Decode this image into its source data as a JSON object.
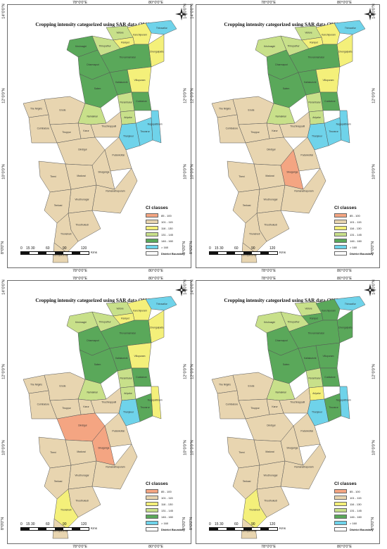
{
  "grid_labels": {
    "top_left": "78°0'0\"E",
    "top_right": "80°0'0\"E",
    "left": [
      "14°0'0\"N",
      "12°0'0\"N",
      "10°0'0\"N",
      "8°0'0\"N"
    ],
    "right": [
      "14°0'0\"N",
      "12°0'0\"N",
      "10°0'0\"N",
      "8°0'0\"N"
    ]
  },
  "legend": {
    "title": "CI classes",
    "classes": [
      {
        "label": "85 - 100",
        "color": "#f4a582"
      },
      {
        "label": "101 - 115",
        "color": "#e8d5b0"
      },
      {
        "label": "116 - 130",
        "color": "#f4f07a"
      },
      {
        "label": "131 - 145",
        "color": "#c8e08a"
      },
      {
        "label": "146 - 160",
        "color": "#5aa85a"
      },
      {
        "label": "> 160",
        "color": "#6fd3ea"
      }
    ],
    "boundary_label": "District Boundary"
  },
  "scale": {
    "ticks": [
      "0",
      "15 30",
      "60",
      "90",
      "120"
    ],
    "unit": "Kms"
  },
  "north_label": "N",
  "district_labels": [
    "Thiruvallur",
    "Vellore",
    "Kanchipuram",
    "Krishnagiri",
    "Ranipet",
    "Chengalpattu",
    "Thirupathur",
    "Tiruvannamalai",
    "Dharmapuri",
    "Kallakurichi",
    "Villupuram",
    "Salem",
    "Cuddalore",
    "The Nilgiris",
    "Erode",
    "Namakkal",
    "Perambalur",
    "Ariyalur",
    "Coimbatore",
    "Karur",
    "Tiruchirappalli",
    "Thanjavur",
    "Tiruvarur",
    "Nagapattinam",
    "Tiruppur",
    "Pudukkottai",
    "Dindigul",
    "Theni",
    "Madurai",
    "Sivaganga",
    "Virudhunagar",
    "Ramanathapuram",
    "Tenkasi",
    "Thoothukudi",
    "Tirunelveli",
    "Kanniyakumari"
  ],
  "panels": [
    {
      "title": "Cropping intensity categorized using SAR data (2019–2020)",
      "district_classes": [
        5,
        3,
        2,
        4,
        2,
        2,
        3,
        4,
        4,
        4,
        2,
        4,
        4,
        1,
        1,
        3,
        3,
        3,
        1,
        1,
        1,
        5,
        5,
        5,
        1,
        1,
        1,
        1,
        1,
        1,
        1,
        1,
        1,
        1,
        1,
        1
      ]
    },
    {
      "title": "Cropping intensity categorized using SAR data (2020–2021)",
      "district_classes": [
        5,
        3,
        2,
        3,
        2,
        2,
        3,
        4,
        4,
        4,
        2,
        4,
        4,
        1,
        1,
        3,
        3,
        3,
        1,
        1,
        1,
        5,
        5,
        5,
        1,
        1,
        1,
        1,
        1,
        0,
        1,
        1,
        1,
        1,
        1,
        1
      ]
    },
    {
      "title": "Cropping intensity categorized using SAR data (2021–2022)",
      "district_classes": [
        5,
        3,
        2,
        3,
        2,
        2,
        3,
        4,
        4,
        4,
        2,
        4,
        4,
        1,
        1,
        3,
        3,
        3,
        1,
        1,
        1,
        5,
        4,
        2,
        1,
        1,
        0,
        1,
        1,
        0,
        1,
        1,
        1,
        1,
        2,
        1
      ]
    },
    {
      "title": "Cropping intensity categorized using SAR data (2022–2023)",
      "district_classes": [
        5,
        3,
        4,
        3,
        4,
        4,
        3,
        4,
        4,
        4,
        4,
        4,
        4,
        1,
        1,
        3,
        3,
        2,
        1,
        1,
        1,
        5,
        4,
        5,
        1,
        1,
        1,
        1,
        1,
        1,
        1,
        1,
        1,
        1,
        2,
        1
      ]
    }
  ]
}
